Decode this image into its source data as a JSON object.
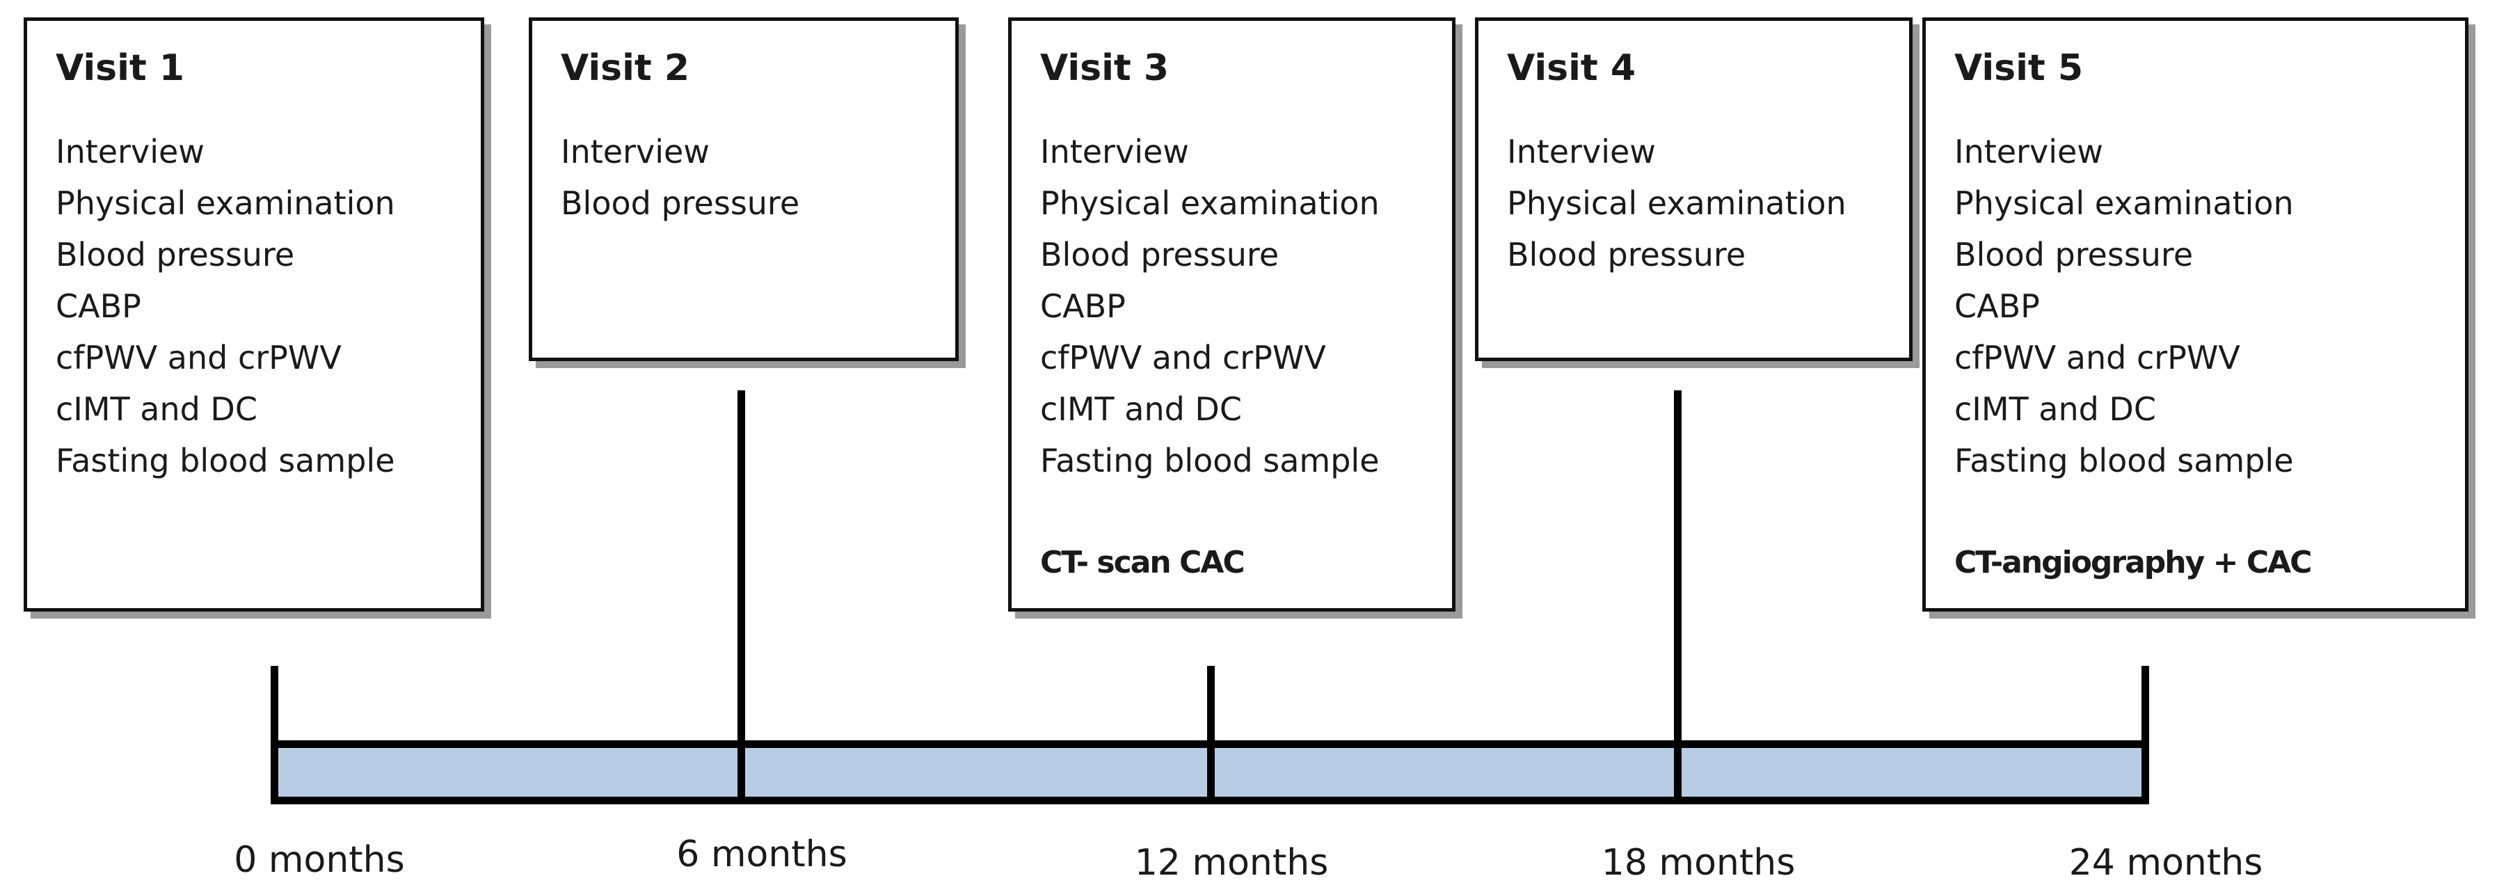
{
  "visits": [
    {
      "title": "Visit 1",
      "items": [
        "Interview",
        "Physical examination",
        "Blood pressure",
        "CABP",
        "cfPWV and crPWV",
        "cIMT and DC",
        "Fasting blood sample"
      ]
    },
    {
      "title": "Visit 2",
      "items": [
        "Interview",
        "Blood pressure"
      ]
    },
    {
      "title": "Visit 3",
      "items": [
        "Interview",
        "Physical examination",
        "Blood pressure",
        "CABP",
        "cfPWV and crPWV",
        "cIMT and DC",
        "Fasting blood sample"
      ],
      "highlight": "CT- scan CAC"
    },
    {
      "title": "Visit 4",
      "items": [
        "Interview",
        "Physical examination",
        "Blood pressure"
      ]
    },
    {
      "title": "Visit 5",
      "items": [
        "Interview",
        "Physical examination",
        "Blood pressure",
        "CABP",
        "cfPWV and crPWV",
        "cIMT and DC",
        "Fasting blood sample"
      ],
      "highlight": "CT-angiography + CAC"
    }
  ],
  "timeline": {
    "labels": [
      "0 months",
      "6 months",
      "12 months",
      "18 months",
      "24 months"
    ]
  }
}
